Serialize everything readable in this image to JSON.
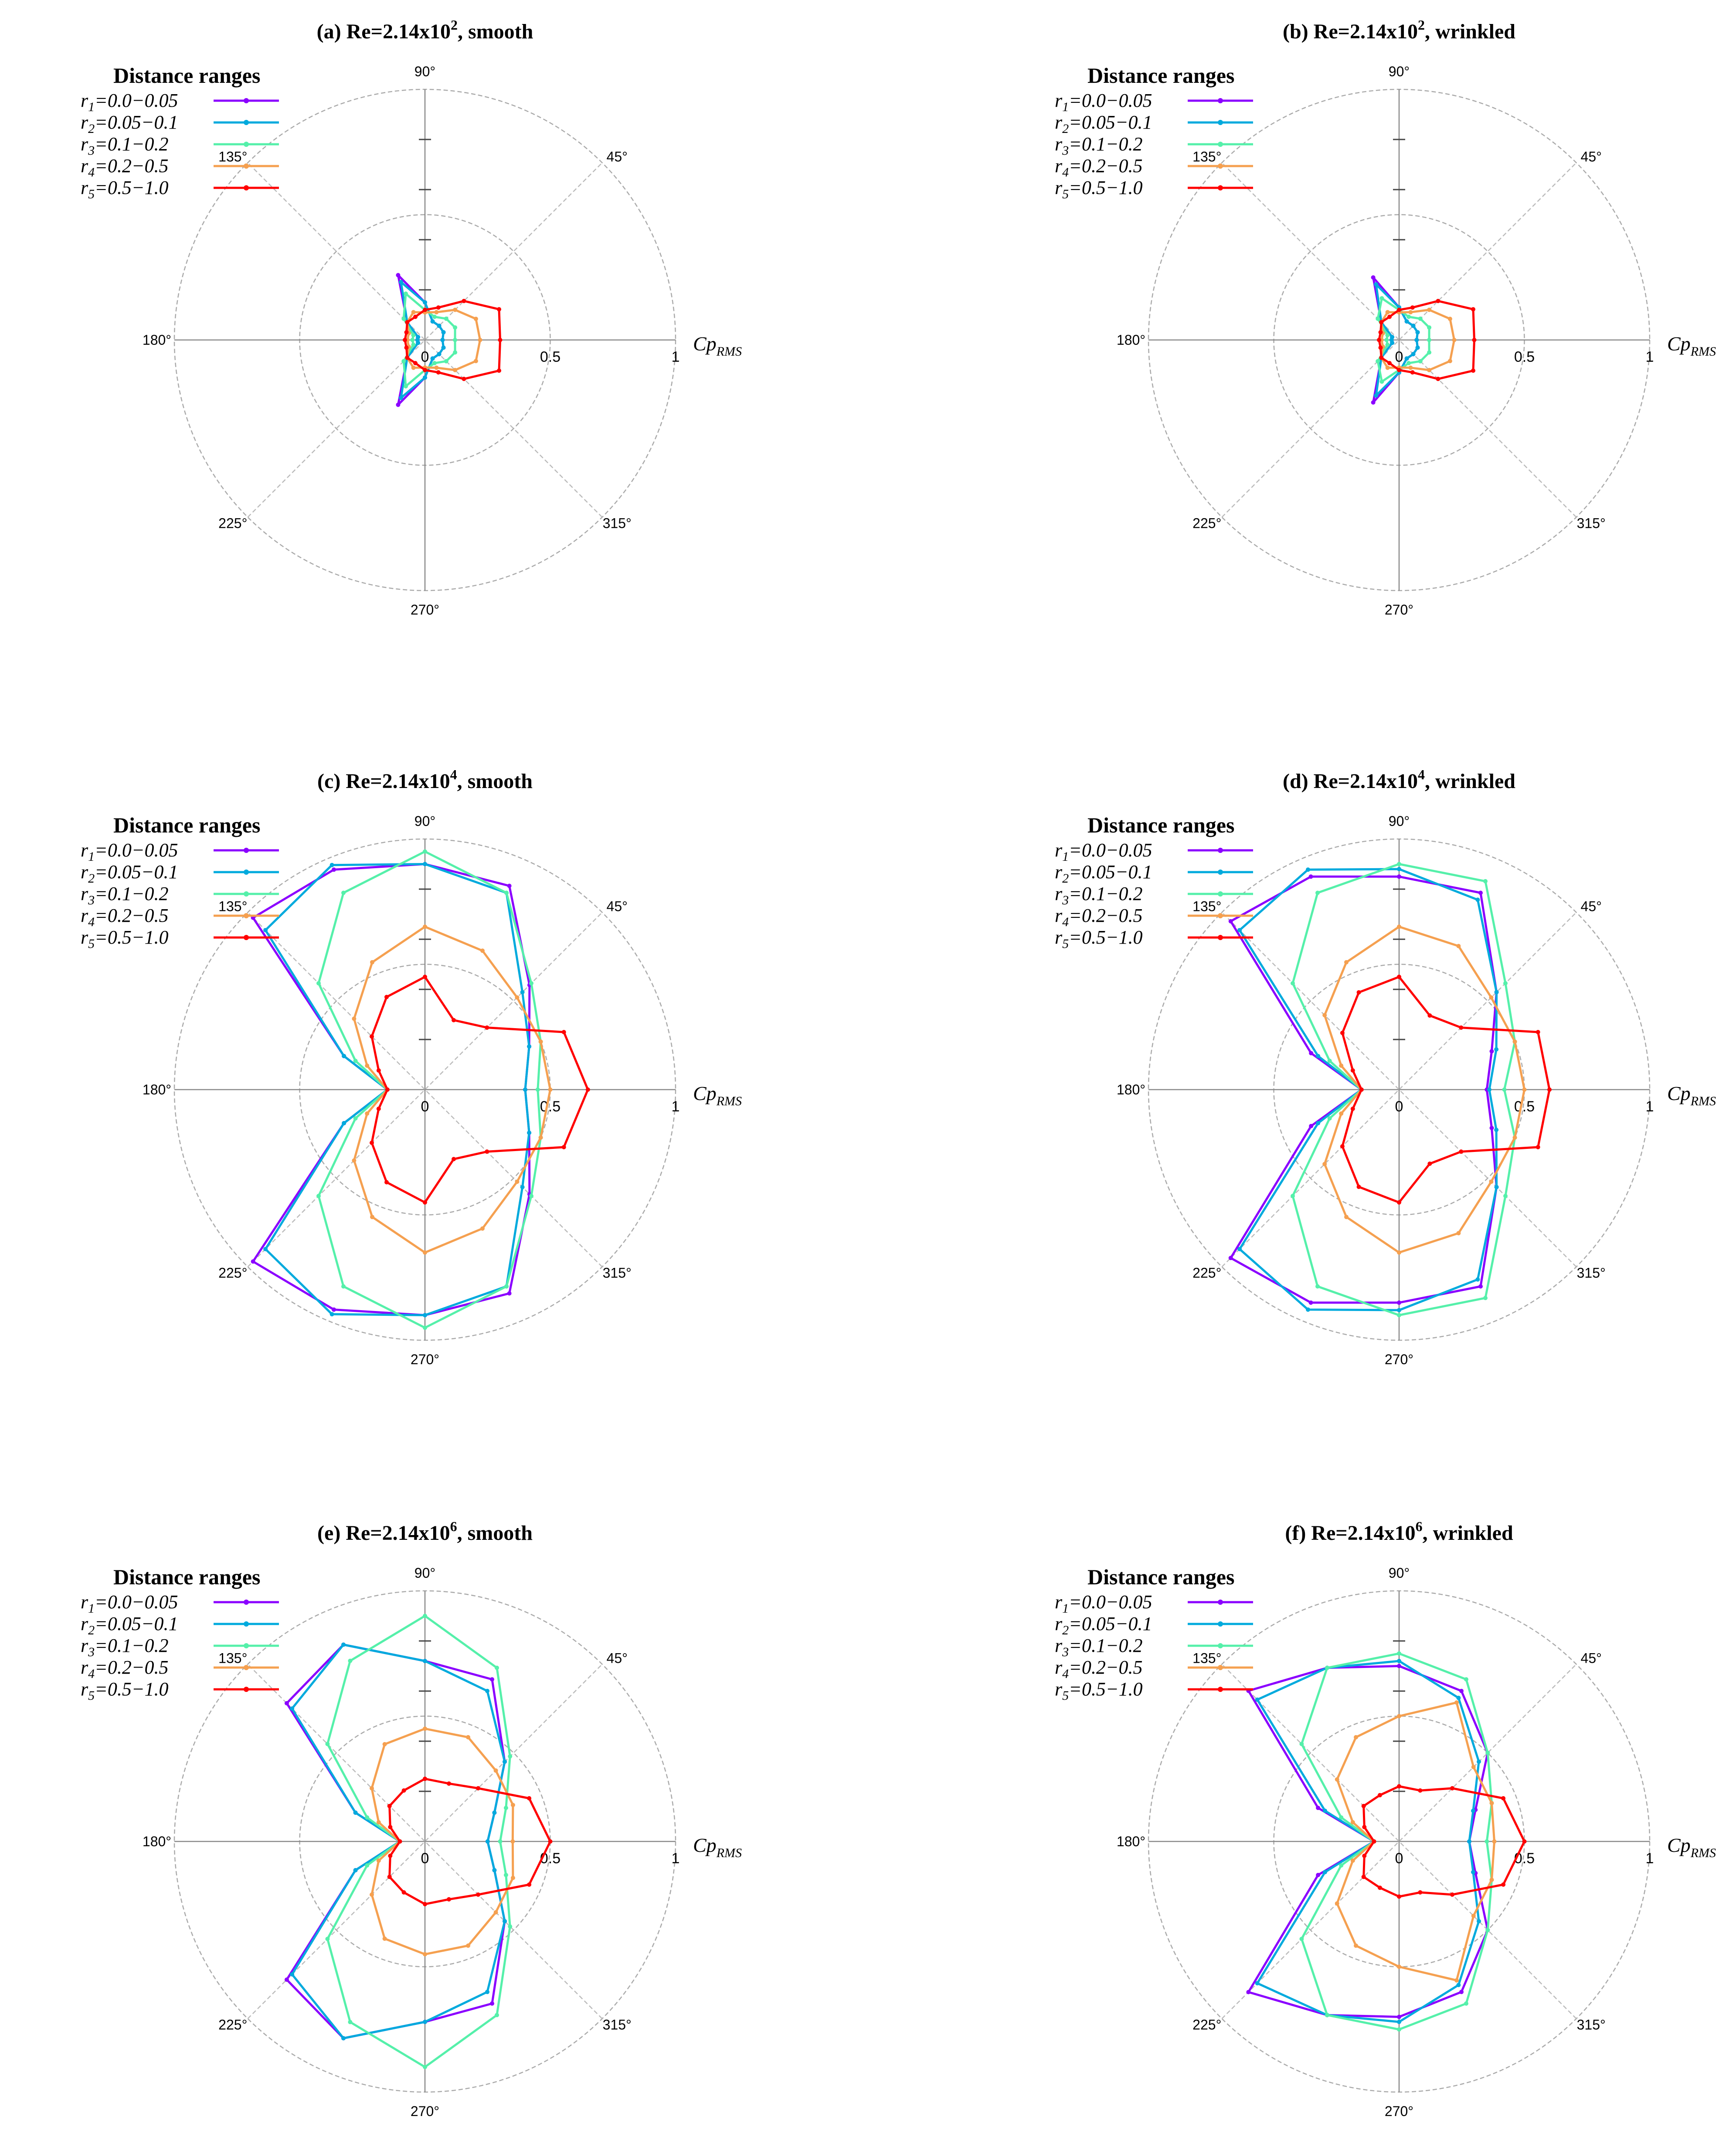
{
  "chart_data": [
    {
      "type": "line",
      "title": "(a) Re=2.14x10",
      "title_sup": "2",
      "title_suffix": ", smooth",
      "legend_title": "Distance ranges",
      "radial_label": "Cp",
      "radial_label_sub": "RMS",
      "radial_ticks": [
        "0",
        "0.5",
        "1"
      ],
      "angle_labels": [
        "90°",
        "45°",
        "135°",
        "180°",
        "225°",
        "270°",
        "315°"
      ],
      "rlim": [
        0,
        1
      ],
      "series": [
        {
          "label": "r",
          "sub": "1",
          "range": "=0.0−0.05",
          "color": "#8b00ff",
          "r": [
            0.07,
            0.08,
            0.08,
            0.08,
            0.15,
            0.28,
            0.1,
            0.03,
            0.03,
            0.03,
            0.1,
            0.28,
            0.15,
            0.08,
            0.08,
            0.08
          ]
        },
        {
          "label": "r",
          "sub": "2",
          "range": "=0.05−0.1",
          "color": "#00aadd",
          "r": [
            0.07,
            0.08,
            0.08,
            0.08,
            0.15,
            0.25,
            0.1,
            0.03,
            0.03,
            0.03,
            0.1,
            0.25,
            0.15,
            0.08,
            0.08,
            0.08
          ]
        },
        {
          "label": "r",
          "sub": "3",
          "range": "=0.1−0.2",
          "color": "#55f0aa",
          "r": [
            0.12,
            0.13,
            0.12,
            0.1,
            0.12,
            0.2,
            0.12,
            0.05,
            0.05,
            0.05,
            0.12,
            0.2,
            0.12,
            0.1,
            0.12,
            0.13
          ]
        },
        {
          "label": "r",
          "sub": "4",
          "range": "=0.2−0.5",
          "color": "#f5a050",
          "r": [
            0.22,
            0.22,
            0.17,
            0.12,
            0.11,
            0.12,
            0.1,
            0.07,
            0.07,
            0.07,
            0.1,
            0.12,
            0.11,
            0.12,
            0.17,
            0.22
          ]
        },
        {
          "label": "r",
          "sub": "5",
          "range": "=0.5−1.0",
          "color": "#ff0000",
          "r": [
            0.3,
            0.32,
            0.22,
            0.14,
            0.12,
            0.1,
            0.1,
            0.08,
            0.08,
            0.08,
            0.1,
            0.1,
            0.12,
            0.14,
            0.22,
            0.32
          ]
        }
      ]
    },
    {
      "type": "line",
      "title": "(b) Re=2.14x10",
      "title_sup": "2",
      "title_suffix": ", wrinkled",
      "legend_title": "Distance ranges",
      "radial_label": "Cp",
      "radial_label_sub": "RMS",
      "radial_ticks": [
        "0",
        "0.5",
        "1"
      ],
      "angle_labels": [
        "90°",
        "45°",
        "135°",
        "180°",
        "225°",
        "270°",
        "315°"
      ],
      "rlim": [
        0,
        1
      ],
      "series": [
        {
          "label": "r",
          "sub": "1",
          "range": "=0.0−0.05",
          "color": "#8b00ff",
          "r": [
            0.07,
            0.08,
            0.08,
            0.08,
            0.13,
            0.27,
            0.1,
            0.03,
            0.03,
            0.03,
            0.1,
            0.27,
            0.13,
            0.08,
            0.08,
            0.08
          ]
        },
        {
          "label": "r",
          "sub": "2",
          "range": "=0.05−0.1",
          "color": "#00aadd",
          "r": [
            0.07,
            0.08,
            0.08,
            0.08,
            0.13,
            0.24,
            0.1,
            0.03,
            0.03,
            0.03,
            0.1,
            0.24,
            0.13,
            0.08,
            0.08,
            0.08
          ]
        },
        {
          "label": "r",
          "sub": "3",
          "range": "=0.1−0.2",
          "color": "#55f0aa",
          "r": [
            0.12,
            0.13,
            0.12,
            0.1,
            0.12,
            0.18,
            0.12,
            0.05,
            0.05,
            0.05,
            0.12,
            0.18,
            0.12,
            0.1,
            0.12,
            0.13
          ]
        },
        {
          "label": "r",
          "sub": "4",
          "range": "=0.2−0.5",
          "color": "#f5a050",
          "r": [
            0.22,
            0.22,
            0.17,
            0.12,
            0.11,
            0.12,
            0.1,
            0.07,
            0.07,
            0.07,
            0.1,
            0.12,
            0.11,
            0.12,
            0.17,
            0.22
          ]
        },
        {
          "label": "r",
          "sub": "5",
          "range": "=0.5−1.0",
          "color": "#ff0000",
          "r": [
            0.3,
            0.32,
            0.22,
            0.14,
            0.12,
            0.1,
            0.1,
            0.08,
            0.08,
            0.08,
            0.1,
            0.1,
            0.12,
            0.14,
            0.22,
            0.32
          ]
        }
      ]
    },
    {
      "type": "line",
      "title": "(c) Re=2.14x10",
      "title_sup": "4",
      "title_suffix": ", smooth",
      "legend_title": "Distance ranges",
      "radial_label": "Cp",
      "radial_label_sub": "RMS",
      "radial_ticks": [
        "0",
        "0.5",
        "1"
      ],
      "angle_labels": [
        "90°",
        "45°",
        "135°",
        "180°",
        "225°",
        "270°",
        "315°"
      ],
      "rlim": [
        0,
        1
      ],
      "series": [
        {
          "label": "r",
          "sub": "1",
          "range": "=0.0−0.05",
          "color": "#8b00ff",
          "r": [
            0.4,
            0.45,
            0.59,
            0.88,
            0.9,
            0.95,
            0.97,
            0.35,
            0.15,
            0.35,
            0.97,
            0.95,
            0.9,
            0.88,
            0.59,
            0.45
          ]
        },
        {
          "label": "r",
          "sub": "2",
          "range": "=0.05−0.1",
          "color": "#00aadd",
          "r": [
            0.4,
            0.45,
            0.55,
            0.85,
            0.9,
            0.97,
            0.9,
            0.35,
            0.15,
            0.35,
            0.9,
            0.97,
            0.9,
            0.85,
            0.55,
            0.45
          ]
        },
        {
          "label": "r",
          "sub": "3",
          "range": "=0.1−0.2",
          "color": "#55f0aa",
          "r": [
            0.45,
            0.5,
            0.6,
            0.85,
            0.95,
            0.85,
            0.6,
            0.3,
            0.15,
            0.3,
            0.6,
            0.85,
            0.95,
            0.85,
            0.6,
            0.5
          ]
        },
        {
          "label": "r",
          "sub": "4",
          "range": "=0.2−0.5",
          "color": "#f5a050",
          "r": [
            0.5,
            0.5,
            0.52,
            0.6,
            0.65,
            0.55,
            0.4,
            0.25,
            0.15,
            0.25,
            0.4,
            0.55,
            0.65,
            0.6,
            0.52,
            0.5
          ]
        },
        {
          "label": "r",
          "sub": "5",
          "range": "=0.5−1.0",
          "color": "#ff0000",
          "r": [
            0.65,
            0.6,
            0.35,
            0.3,
            0.45,
            0.4,
            0.3,
            0.2,
            0.15,
            0.2,
            0.3,
            0.4,
            0.45,
            0.3,
            0.35,
            0.6
          ]
        }
      ]
    },
    {
      "type": "line",
      "title": "(d) Re=2.14x10",
      "title_sup": "4",
      "title_suffix": ", wrinkled",
      "legend_title": "Distance ranges",
      "radial_label": "Cp",
      "radial_label_sub": "RMS",
      "radial_ticks": [
        "0",
        "0.5",
        "1"
      ],
      "angle_labels": [
        "90°",
        "45°",
        "135°",
        "180°",
        "225°",
        "270°",
        "315°"
      ],
      "rlim": [
        0,
        1
      ],
      "series": [
        {
          "label": "r",
          "sub": "1",
          "range": "=0.0−0.05",
          "color": "#8b00ff",
          "r": [
            0.35,
            0.4,
            0.55,
            0.85,
            0.85,
            0.92,
            0.95,
            0.38,
            0.15,
            0.38,
            0.95,
            0.92,
            0.85,
            0.85,
            0.55,
            0.4
          ]
        },
        {
          "label": "r",
          "sub": "2",
          "range": "=0.05−0.1",
          "color": "#00aadd",
          "r": [
            0.36,
            0.42,
            0.55,
            0.82,
            0.88,
            0.95,
            0.9,
            0.35,
            0.15,
            0.35,
            0.9,
            0.95,
            0.88,
            0.82,
            0.55,
            0.42
          ]
        },
        {
          "label": "r",
          "sub": "3",
          "range": "=0.1−0.2",
          "color": "#55f0aa",
          "r": [
            0.42,
            0.5,
            0.6,
            0.9,
            0.9,
            0.85,
            0.6,
            0.3,
            0.15,
            0.3,
            0.6,
            0.85,
            0.9,
            0.9,
            0.6,
            0.5
          ]
        },
        {
          "label": "r",
          "sub": "4",
          "range": "=0.2−0.5",
          "color": "#f5a050",
          "r": [
            0.5,
            0.5,
            0.52,
            0.62,
            0.65,
            0.55,
            0.42,
            0.25,
            0.15,
            0.25,
            0.42,
            0.55,
            0.65,
            0.62,
            0.52,
            0.5
          ]
        },
        {
          "label": "r",
          "sub": "5",
          "range": "=0.5−1.0",
          "color": "#ff0000",
          "r": [
            0.6,
            0.6,
            0.35,
            0.32,
            0.45,
            0.42,
            0.32,
            0.2,
            0.15,
            0.2,
            0.32,
            0.42,
            0.45,
            0.32,
            0.35,
            0.6
          ]
        }
      ]
    },
    {
      "type": "line",
      "title": "(e) Re=2.14x10",
      "title_sup": "6",
      "title_suffix": ", smooth",
      "legend_title": "Distance ranges",
      "radial_label": "Cp",
      "radial_label_sub": "RMS",
      "radial_ticks": [
        "0",
        "0.5",
        "1"
      ],
      "angle_labels": [
        "90°",
        "45°",
        "135°",
        "180°",
        "225°",
        "270°",
        "315°"
      ],
      "rlim": [
        0,
        1
      ],
      "series": [
        {
          "label": "r",
          "sub": "1",
          "range": "=0.0−0.05",
          "color": "#8b00ff",
          "r": [
            0.25,
            0.3,
            0.45,
            0.7,
            0.72,
            0.85,
            0.78,
            0.3,
            0.1,
            0.3,
            0.78,
            0.85,
            0.72,
            0.7,
            0.45,
            0.3
          ]
        },
        {
          "label": "r",
          "sub": "2",
          "range": "=0.05−0.1",
          "color": "#00aadd",
          "r": [
            0.25,
            0.3,
            0.45,
            0.65,
            0.72,
            0.85,
            0.75,
            0.3,
            0.1,
            0.3,
            0.75,
            0.85,
            0.72,
            0.65,
            0.45,
            0.3
          ]
        },
        {
          "label": "r",
          "sub": "3",
          "range": "=0.1−0.2",
          "color": "#55f0aa",
          "r": [
            0.3,
            0.35,
            0.48,
            0.75,
            0.9,
            0.78,
            0.55,
            0.25,
            0.1,
            0.25,
            0.55,
            0.78,
            0.9,
            0.75,
            0.48,
            0.35
          ]
        },
        {
          "label": "r",
          "sub": "4",
          "range": "=0.2−0.5",
          "color": "#f5a050",
          "r": [
            0.35,
            0.38,
            0.4,
            0.45,
            0.45,
            0.42,
            0.3,
            0.2,
            0.1,
            0.2,
            0.3,
            0.42,
            0.45,
            0.45,
            0.4,
            0.38
          ]
        },
        {
          "label": "r",
          "sub": "5",
          "range": "=0.5−1.0",
          "color": "#ff0000",
          "r": [
            0.5,
            0.45,
            0.3,
            0.25,
            0.25,
            0.22,
            0.2,
            0.15,
            0.1,
            0.15,
            0.2,
            0.22,
            0.25,
            0.25,
            0.3,
            0.45
          ]
        }
      ]
    },
    {
      "type": "line",
      "title": "(f) Re=2.14x10",
      "title_sup": "6",
      "title_suffix": ", wrinkled",
      "legend_title": "Distance ranges",
      "radial_label": "Cp",
      "radial_label_sub": "RMS",
      "radial_ticks": [
        "0",
        "0.5",
        "1"
      ],
      "angle_labels": [
        "90°",
        "45°",
        "135°",
        "180°",
        "225°",
        "270°",
        "315°"
      ],
      "rlim": [
        0,
        1
      ],
      "series": [
        {
          "label": "r",
          "sub": "1",
          "range": "=0.0−0.05",
          "color": "#8b00ff",
          "r": [
            0.28,
            0.33,
            0.5,
            0.65,
            0.7,
            0.75,
            0.85,
            0.35,
            0.1,
            0.35,
            0.85,
            0.75,
            0.7,
            0.65,
            0.5,
            0.33
          ]
        },
        {
          "label": "r",
          "sub": "2",
          "range": "=0.05−0.1",
          "color": "#00aadd",
          "r": [
            0.28,
            0.32,
            0.45,
            0.62,
            0.72,
            0.75,
            0.8,
            0.32,
            0.1,
            0.32,
            0.8,
            0.75,
            0.72,
            0.62,
            0.45,
            0.32
          ]
        },
        {
          "label": "r",
          "sub": "3",
          "range": "=0.1−0.2",
          "color": "#55f0aa",
          "r": [
            0.35,
            0.4,
            0.5,
            0.7,
            0.75,
            0.75,
            0.55,
            0.25,
            0.1,
            0.25,
            0.55,
            0.75,
            0.75,
            0.7,
            0.5,
            0.4
          ]
        },
        {
          "label": "r",
          "sub": "4",
          "range": "=0.2−0.5",
          "color": "#f5a050",
          "r": [
            0.38,
            0.4,
            0.42,
            0.6,
            0.5,
            0.45,
            0.35,
            0.2,
            0.1,
            0.2,
            0.35,
            0.45,
            0.5,
            0.6,
            0.42,
            0.4
          ]
        },
        {
          "label": "r",
          "sub": "5",
          "range": "=0.5−1.0",
          "color": "#ff0000",
          "r": [
            0.5,
            0.45,
            0.3,
            0.22,
            0.22,
            0.2,
            0.2,
            0.15,
            0.1,
            0.15,
            0.2,
            0.2,
            0.22,
            0.22,
            0.3,
            0.45
          ]
        }
      ]
    }
  ]
}
